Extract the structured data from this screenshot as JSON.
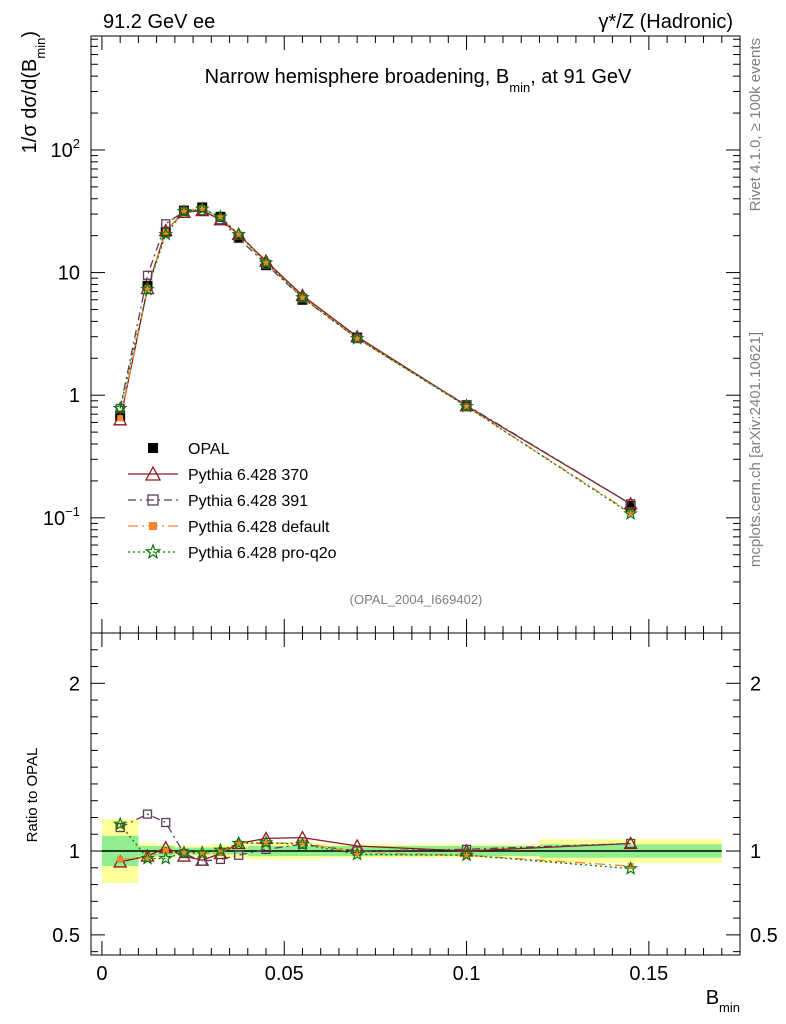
{
  "header": {
    "left": "91.2 GeV ee",
    "right": "γ*/Z (Hadronic)"
  },
  "side": {
    "rivet": "Rivet 4.1.0, ≥ 100k events",
    "mcplots": "mcplots.cern.ch [arXiv:2401.10621]"
  },
  "chart_data": {
    "type": "line",
    "title_main": "Narrow hemisphere broadening, B",
    "title_sub": "min",
    "title_tail": ", at 91 GeV",
    "analysis_id": "(OPAL_2004_I669402)",
    "ylabel": "1/σ  dσ/d(B",
    "ylabel_sub": "min",
    "ylabel_end": ")",
    "xlabel": "B",
    "xlabel_sub": "min",
    "ratio_ylabel": "Ratio to OPAL",
    "xlim": [
      -0.003,
      0.175
    ],
    "ylim_log": [
      0.0115,
      850
    ],
    "ratio_ylim": [
      0.38,
      2.3
    ],
    "x_ticks": [
      {
        "v": 0,
        "label": "0"
      },
      {
        "v": 0.05,
        "label": "0.05"
      },
      {
        "v": 0.1,
        "label": "0.1"
      },
      {
        "v": 0.15,
        "label": "0.15"
      }
    ],
    "y_ticks": [
      {
        "v": 0.1,
        "label": "10",
        "sup": "−1"
      },
      {
        "v": 1,
        "label": "1",
        "sup": ""
      },
      {
        "v": 10,
        "label": "10",
        "sup": ""
      },
      {
        "v": 100,
        "label": "10",
        "sup": "2"
      }
    ],
    "ratio_ticks": [
      {
        "v": 0.5,
        "label": "0.5"
      },
      {
        "v": 1,
        "label": "1"
      },
      {
        "v": 2,
        "label": "2"
      }
    ],
    "bins": [
      {
        "lo": 0.0,
        "hi": 0.01
      },
      {
        "lo": 0.01,
        "hi": 0.015
      },
      {
        "lo": 0.015,
        "hi": 0.02
      },
      {
        "lo": 0.02,
        "hi": 0.025
      },
      {
        "lo": 0.025,
        "hi": 0.03
      },
      {
        "lo": 0.03,
        "hi": 0.035
      },
      {
        "lo": 0.035,
        "hi": 0.04
      },
      {
        "lo": 0.04,
        "hi": 0.05
      },
      {
        "lo": 0.05,
        "hi": 0.06
      },
      {
        "lo": 0.06,
        "hi": 0.08
      },
      {
        "lo": 0.08,
        "hi": 0.12
      },
      {
        "lo": 0.12,
        "hi": 0.17
      }
    ],
    "x": [
      0.005,
      0.0125,
      0.0175,
      0.0225,
      0.0275,
      0.0325,
      0.0375,
      0.045,
      0.055,
      0.07,
      0.1,
      0.145
    ],
    "data": {
      "name": "OPAL",
      "color": "#000000",
      "values": [
        0.68,
        7.8,
        21.5,
        32.0,
        34.0,
        28.5,
        19.5,
        11.5,
        6.0,
        2.95,
        0.83,
        0.125
      ],
      "band_stat": [
        0.09,
        0.03,
        0.03,
        0.02,
        0.02,
        0.02,
        0.02,
        0.03,
        0.03,
        0.03,
        0.03,
        0.04
      ],
      "band_tot": [
        0.19,
        0.05,
        0.04,
        0.03,
        0.03,
        0.04,
        0.04,
        0.05,
        0.05,
        0.04,
        0.04,
        0.07
      ]
    },
    "series": [
      {
        "name": "Pythia 6.428 370",
        "color": "#8b1a1a",
        "marker": "triangle",
        "dash": "",
        "values": [
          0.63,
          7.4,
          22.0,
          31.0,
          32.0,
          27.0,
          20.5,
          12.4,
          6.5,
          3.0,
          0.82,
          0.13
        ],
        "ratio": [
          0.935,
          0.97,
          1.02,
          0.97,
          0.945,
          0.985,
          1.045,
          1.075,
          1.08,
          1.03,
          1.0,
          1.045
        ]
      },
      {
        "name": "Pythia 6.428 391",
        "color": "#5e3c58",
        "marker": "square-open",
        "dash": "8,4,2,4",
        "values": [
          0.78,
          9.5,
          25.0,
          31.5,
          32.0,
          27.0,
          19.0,
          11.7,
          6.2,
          2.9,
          0.83,
          0.13
        ],
        "ratio": [
          1.14,
          1.22,
          1.17,
          0.985,
          0.94,
          0.95,
          0.975,
          1.01,
          1.04,
          1.0,
          1.01,
          1.045
        ]
      },
      {
        "name": "Pythia 6.428 default",
        "color": "#f38530",
        "marker": "square-filled",
        "dash": "10,4,2,4",
        "values": [
          0.65,
          7.5,
          21.5,
          32.0,
          33.5,
          28.0,
          20.5,
          12.0,
          6.3,
          2.9,
          0.81,
          0.11
        ],
        "ratio": [
          0.95,
          0.965,
          1.0,
          0.99,
          0.98,
          0.99,
          1.05,
          1.045,
          1.05,
          0.99,
          0.975,
          0.91
        ]
      },
      {
        "name": "Pythia 6.428 pro-q2o",
        "color": "#0a7a0a",
        "marker": "star",
        "dash": "2,3",
        "values": [
          0.78,
          7.3,
          20.5,
          31.5,
          33.0,
          28.5,
          20.5,
          12.0,
          6.25,
          2.9,
          0.81,
          0.108
        ],
        "ratio": [
          1.16,
          0.955,
          0.955,
          0.99,
          0.99,
          1.005,
          1.045,
          1.05,
          1.04,
          0.98,
          0.975,
          0.895
        ]
      }
    ]
  }
}
